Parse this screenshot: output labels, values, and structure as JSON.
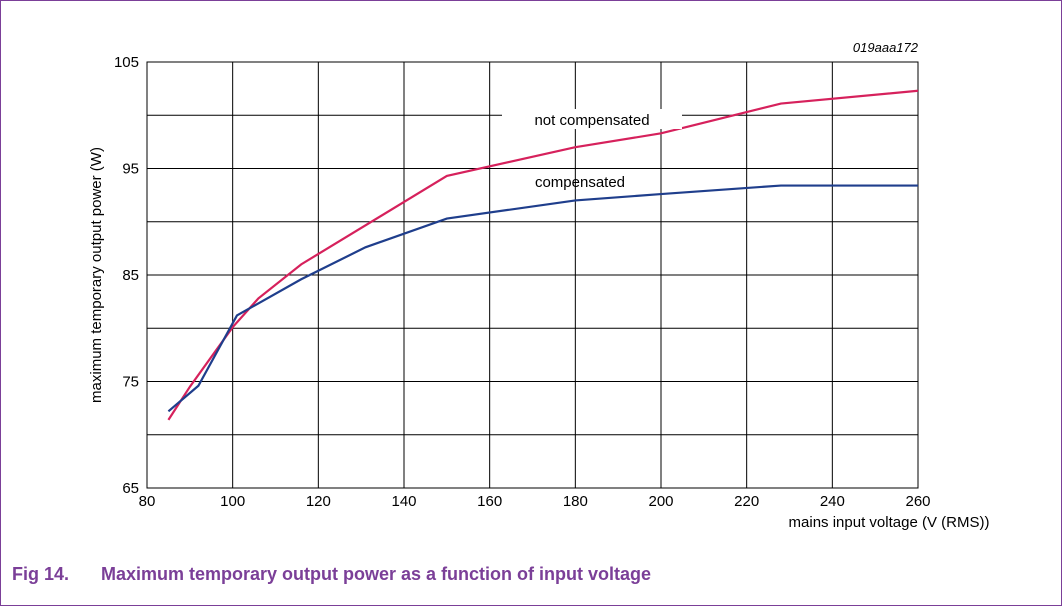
{
  "chart_data": {
    "type": "line",
    "figure_number": "Fig 14.",
    "title": "Maximum temporary output power as a function of input voltage",
    "code": "019aaa172",
    "x_label": "mains input voltage (V (RMS))",
    "y_label": "maximum temporary output power (W)",
    "xlim": [
      80,
      260
    ],
    "xticks": [
      80,
      100,
      120,
      140,
      160,
      180,
      200,
      220,
      240,
      260
    ],
    "ylim": [
      65,
      105
    ],
    "yticks": [
      65,
      75,
      85,
      95,
      105
    ],
    "y_minor_grid": [
      70,
      80,
      90,
      100
    ],
    "grid": true,
    "series": [
      {
        "name": "not compensated",
        "color": "#d6215c",
        "x": [
          85,
          90,
          100,
          106,
          116,
          150,
          180,
          200,
          228,
          260
        ],
        "values": [
          71.4,
          74.5,
          80.1,
          82.8,
          86.0,
          94.3,
          97.0,
          98.3,
          101.1,
          102.3
        ]
      },
      {
        "name": "compensated",
        "color": "#1f3e8c",
        "x": [
          85,
          92,
          101,
          116,
          131,
          150,
          180,
          200,
          228,
          260
        ],
        "values": [
          72.2,
          74.6,
          81.2,
          84.6,
          87.6,
          90.3,
          92.0,
          92.6,
          93.4,
          93.4
        ]
      }
    ]
  }
}
